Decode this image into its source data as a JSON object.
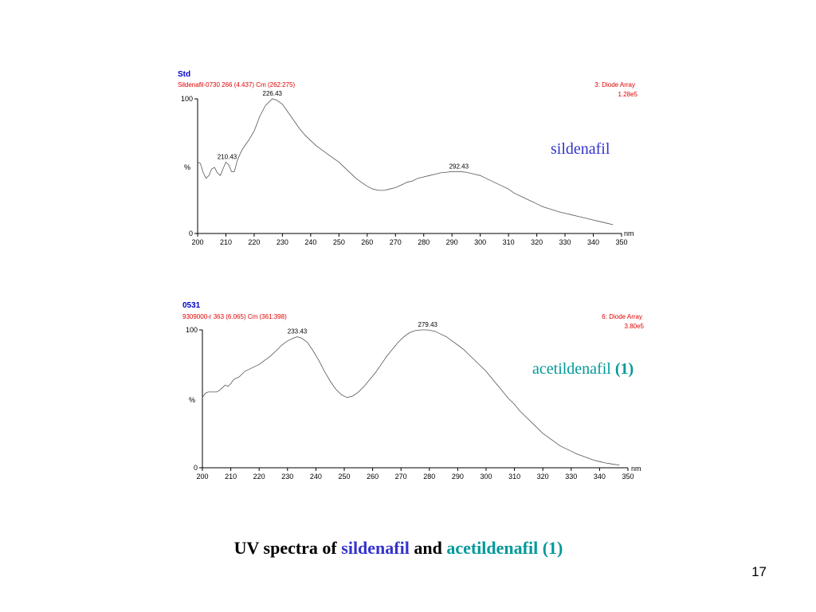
{
  "colors": {
    "sildenafil": "#3333cc",
    "acetildenafil": "#009999",
    "header_red": "#e00000",
    "header_blue": "#0000cc"
  },
  "chart_data": [
    {
      "type": "line",
      "sample": "Std",
      "info": "Sildenafil-0730 266 (4.437) Cm (262:275)",
      "detector": "3: Diode Array",
      "intensity": "1.28e5",
      "compound_label": "sildenafil",
      "ylabel": "%",
      "xunit": "nm",
      "xlim": [
        200,
        350
      ],
      "ylim": [
        0,
        100
      ],
      "xticks": [
        200,
        210,
        220,
        230,
        240,
        250,
        260,
        270,
        280,
        290,
        300,
        310,
        320,
        330,
        340,
        350
      ],
      "yticks": [
        0,
        100
      ],
      "peaks": [
        {
          "x": 226.43,
          "y": 100,
          "label": "226.43"
        },
        {
          "x": 210.43,
          "y": 53,
          "label": "210.43"
        },
        {
          "x": 292.43,
          "y": 46,
          "label": "292.43"
        }
      ],
      "x": [
        200,
        201,
        202,
        203,
        204,
        205,
        206,
        207,
        208,
        209,
        210,
        211,
        212,
        213,
        214,
        215,
        216,
        218,
        220,
        222,
        224,
        226.43,
        228,
        230,
        232,
        234,
        236,
        238,
        240,
        242,
        244,
        246,
        248,
        250,
        252,
        254,
        256,
        258,
        260,
        262,
        264,
        266,
        268,
        270,
        272,
        274,
        276,
        278,
        280,
        282,
        284,
        286,
        288,
        290,
        292.43,
        295,
        298,
        300,
        302,
        305,
        308,
        310,
        312,
        315,
        318,
        320,
        322,
        325,
        328,
        330,
        332,
        335,
        338,
        340,
        342,
        345,
        347
      ],
      "y": [
        53,
        52,
        45,
        41,
        43,
        48,
        49,
        45,
        43,
        48,
        53,
        51,
        46,
        46,
        54,
        59,
        63,
        69,
        76,
        87,
        95,
        100,
        99,
        96,
        90,
        84,
        78,
        73,
        69,
        65,
        62,
        59,
        56,
        53,
        49,
        45,
        41,
        38,
        35,
        33,
        32,
        32,
        33,
        34,
        36,
        38,
        39,
        41,
        42,
        43,
        44,
        45,
        45.5,
        46,
        46,
        45.5,
        44,
        43,
        41,
        38,
        35,
        33,
        30,
        27,
        24,
        22,
        20,
        18,
        16,
        15,
        14,
        12.5,
        11,
        10,
        9,
        7.5,
        6.5
      ]
    },
    {
      "type": "line",
      "sample": "0531",
      "info": "9309000-r 363 (6.065) Cm (361:398)",
      "detector": "6: Diode Array",
      "intensity": "3.80e5",
      "compound_label_text": "acetildenafil ",
      "compound_label_bold": "(1)",
      "ylabel": "%",
      "xunit": "nm",
      "xlim": [
        200,
        350
      ],
      "ylim": [
        0,
        100
      ],
      "xticks": [
        200,
        210,
        220,
        230,
        240,
        250,
        260,
        270,
        280,
        290,
        300,
        310,
        320,
        330,
        340,
        350
      ],
      "yticks": [
        0,
        100
      ],
      "peaks": [
        {
          "x": 233.43,
          "y": 95,
          "label": "233.43"
        },
        {
          "x": 279.43,
          "y": 100,
          "label": "279.43"
        }
      ],
      "x": [
        200,
        201,
        202,
        203,
        204,
        205,
        206,
        207,
        208,
        209,
        210,
        211,
        212,
        213,
        214,
        215,
        216,
        218,
        220,
        222,
        224,
        226,
        228,
        230,
        232,
        233.43,
        235,
        237,
        239,
        241,
        243,
        245,
        247,
        249,
        251,
        253,
        255,
        257,
        259,
        261,
        263,
        265,
        267,
        269,
        271,
        273,
        275,
        277,
        279.43,
        282,
        284,
        286,
        288,
        290,
        292,
        294,
        296,
        298,
        300,
        302,
        304,
        306,
        308,
        310,
        312,
        314,
        316,
        318,
        320,
        322,
        324,
        326,
        328,
        330,
        332,
        334,
        336,
        338,
        340,
        342,
        345,
        347
      ],
      "y": [
        51,
        54,
        55,
        55,
        55,
        55,
        56,
        58,
        60,
        59,
        61,
        64,
        65,
        66,
        68,
        70,
        71,
        73,
        75,
        78,
        81,
        85,
        89,
        92,
        94,
        95,
        94,
        91,
        85,
        78,
        70,
        63,
        57,
        53,
        51,
        52,
        55,
        59,
        64,
        69,
        75,
        81,
        86,
        91,
        95,
        98,
        99.5,
        100,
        100,
        99,
        97,
        95,
        92,
        89,
        86,
        82,
        78,
        74,
        70,
        65,
        60,
        55,
        50,
        46,
        41,
        37,
        33,
        29,
        25,
        22,
        19,
        16,
        14,
        12,
        10,
        8.5,
        7,
        5.5,
        4.5,
        3.5,
        2.5,
        2
      ]
    }
  ],
  "caption": {
    "prefix": "UV spectra of ",
    "sildenafil": "sildenafil",
    "middle": " and ",
    "acetildenafil": "acetildenafil (1)"
  },
  "page_number": "17"
}
